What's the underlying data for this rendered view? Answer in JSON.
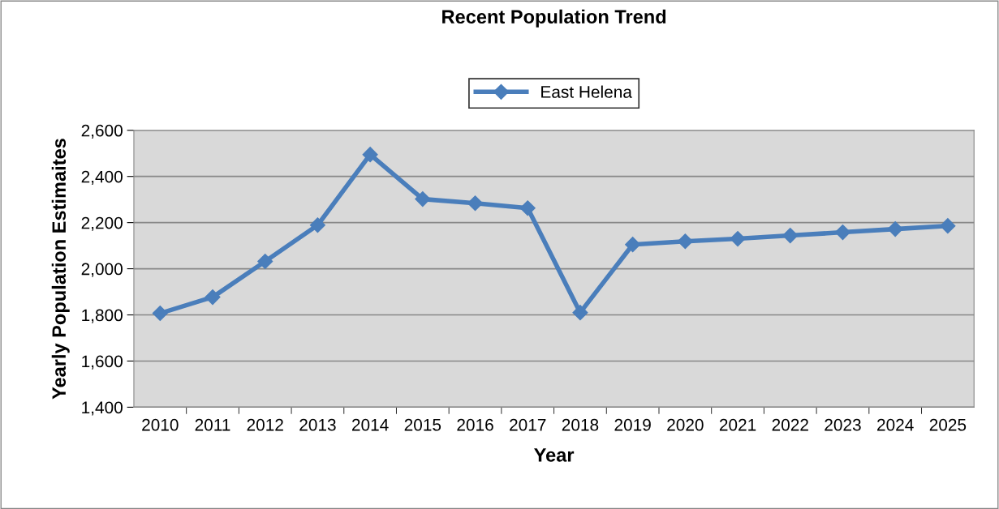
{
  "chart_data": {
    "type": "line",
    "title": "Recent Population Trend",
    "xlabel": "Year",
    "ylabel": "Yearly Population Estimaites",
    "categories": [
      "2010",
      "2011",
      "2012",
      "2013",
      "2014",
      "2015",
      "2016",
      "2017",
      "2018",
      "2019",
      "2020",
      "2021",
      "2022",
      "2023",
      "2024",
      "2025"
    ],
    "series": [
      {
        "name": "East Helena",
        "color": "#4a7ebb",
        "values": [
          1807,
          1877,
          2032,
          2189,
          2495,
          2302,
          2284,
          2263,
          1810,
          2105,
          2119,
          2130,
          2144,
          2158,
          2172,
          2186
        ]
      }
    ],
    "ylim": [
      1400,
      2600
    ],
    "yticks": [
      {
        "value": 1400,
        "label": "1,400"
      },
      {
        "value": 1600,
        "label": "1,600"
      },
      {
        "value": 1800,
        "label": "1,800"
      },
      {
        "value": 2000,
        "label": "2,000"
      },
      {
        "value": 2200,
        "label": "2,200"
      },
      {
        "value": 2400,
        "label": "2,400"
      },
      {
        "value": 2600,
        "label": "2,600"
      }
    ],
    "grid": "y",
    "legend": "top",
    "marker": "diamond",
    "line_style": "solid"
  }
}
